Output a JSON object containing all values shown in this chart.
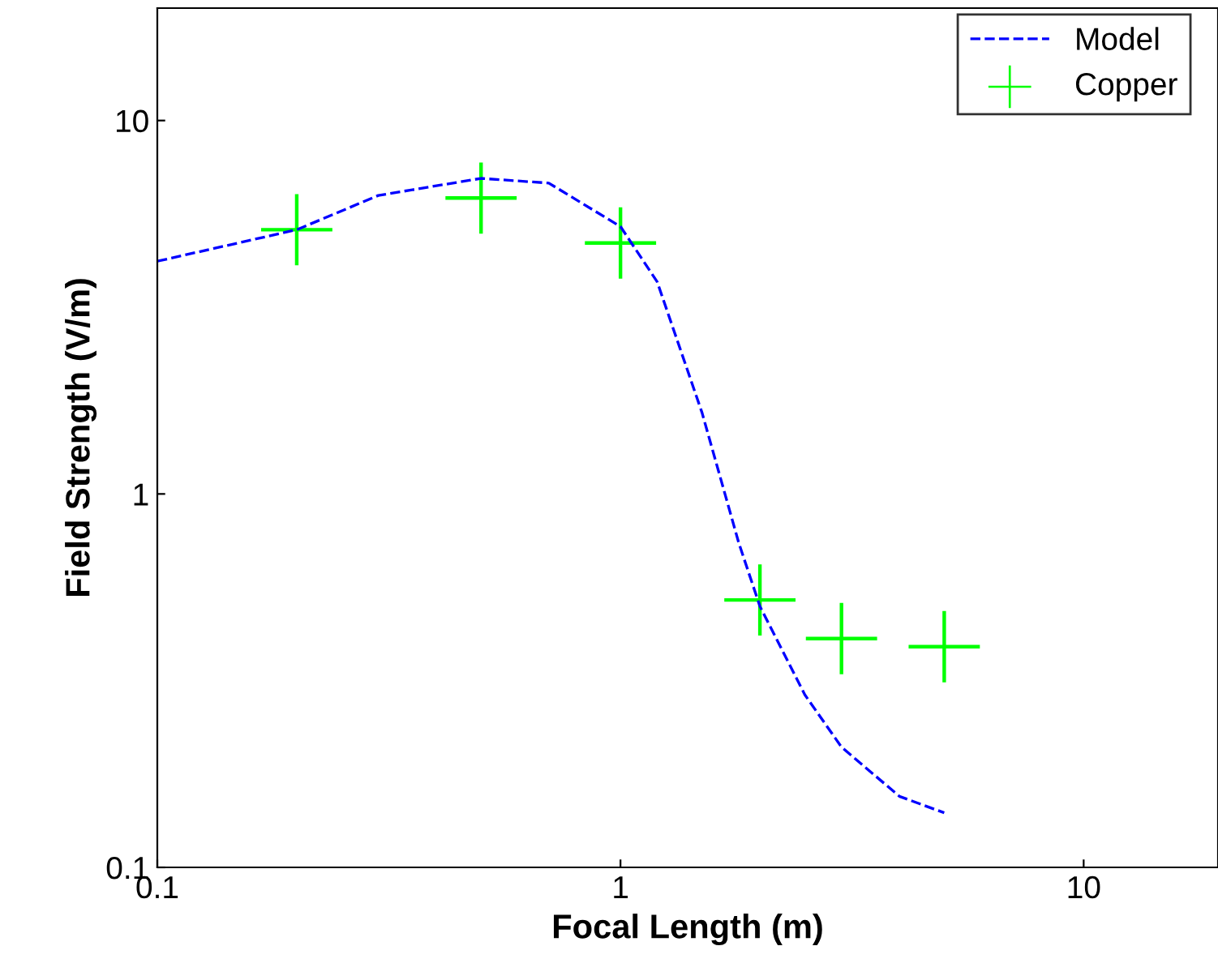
{
  "chart_data": {
    "type": "line",
    "xlabel": "Focal Length (m)",
    "ylabel": "Field Strength (V/m)",
    "log": "xy",
    "xlim": [
      0.1,
      19.5
    ],
    "ylim": [
      0.1,
      20
    ],
    "xticks": [
      0.1,
      1,
      10
    ],
    "yticks": [
      0.1,
      1,
      10
    ],
    "grid": false,
    "legend": "top right",
    "series": [
      {
        "name": "Model",
        "color": "#0000ff",
        "line_style": "dashed",
        "marker": "none",
        "x": [
          0.1,
          0.2,
          0.3,
          0.5,
          0.7,
          1.0,
          1.2,
          1.5,
          1.8,
          2,
          2.5,
          3,
          4,
          5
        ],
        "values": [
          4.2,
          5.1,
          6.3,
          7.0,
          6.8,
          5.2,
          3.7,
          1.65,
          0.74,
          0.5,
          0.29,
          0.21,
          0.155,
          0.14
        ]
      },
      {
        "name": "Copper",
        "type": "scatter",
        "color": "#00ff00",
        "marker": "cross",
        "x": [
          0.2,
          0.5,
          1,
          2,
          3,
          5
        ],
        "values": [
          5.1,
          6.2,
          4.7,
          0.52,
          0.41,
          0.39
        ]
      }
    ]
  }
}
